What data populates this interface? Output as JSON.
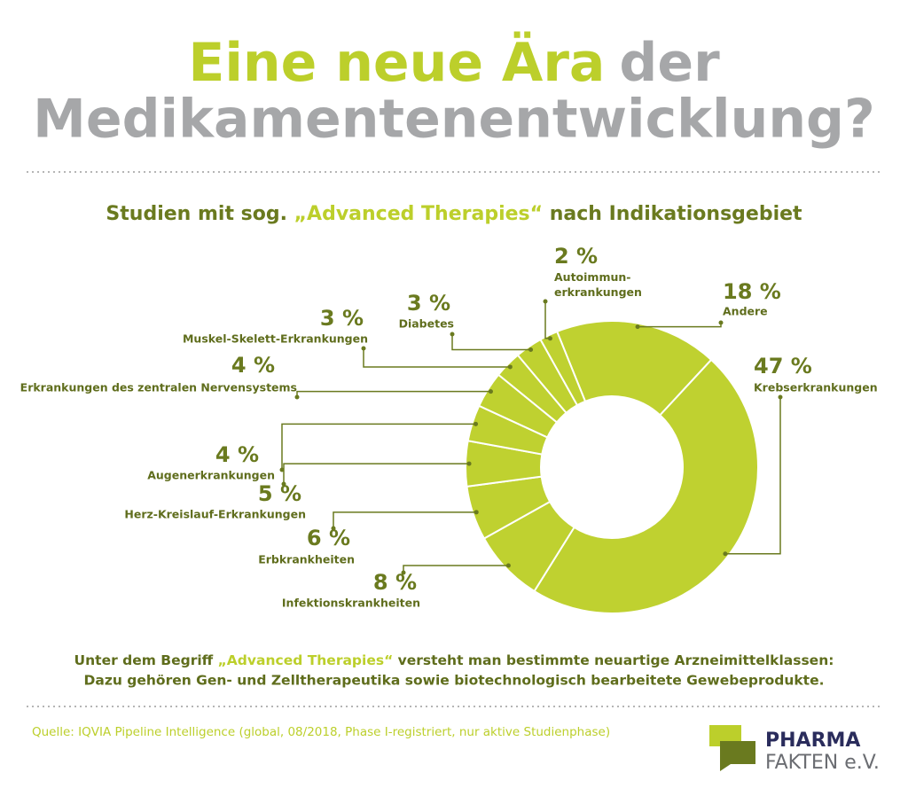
{
  "header": {
    "title": [
      "Eine neue Ära",
      "der",
      "Medikamentenentwicklung?"
    ]
  },
  "chart_data": {
    "type": "donut",
    "title": [
      "Studien mit sog. ",
      "„Advanced Therapies“",
      " nach Indikationsgebiet"
    ],
    "categories": [
      "Andere",
      "Krebserkrankungen",
      "Infektionskrankheiten",
      "Erbkrankheiten",
      "Herz-Kreislauf-Erkrankungen",
      "Augenerkrankungen",
      "Erkrankungen des zentralen Nervensystems",
      "Muskel-Skelett-Erkrankungen",
      "Diabetes",
      "Autoimmun-\nerkrankungen"
    ],
    "values": [
      18,
      47,
      8,
      6,
      5,
      4,
      4,
      3,
      3,
      2
    ],
    "value_labels": [
      "18 %",
      "47 %",
      "8 %",
      "6 %",
      "5 %",
      "4 %",
      "4 %",
      "3 %",
      "3 %",
      "2 %"
    ],
    "color": "#bfd130"
  },
  "note": [
    [
      "Unter dem Begriff ",
      "„Advanced Therapies“",
      " versteht man bestimmte neuartige Arzneimittelklassen:"
    ],
    "Dazu gehören Gen- und Zelltherapeutika sowie biotechnologisch bearbeitete Gewebeprodukte."
  ],
  "source": "Quelle: IQVIA Pipeline Intelligence (global, 08/2018, Phase I-registriert, nur aktive Studienphase)",
  "logo": [
    "PHARMA",
    "FAKTEN e.V."
  ]
}
